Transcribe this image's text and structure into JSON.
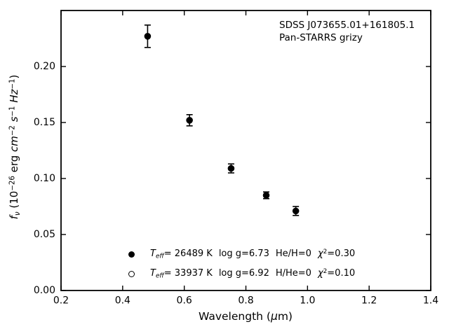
{
  "figure": {
    "annotation": {
      "line1": "SDSS J073655.01+161805.1",
      "line2": "Pan-STARRS grizy"
    },
    "xlabel": {
      "pre": "Wavelength (",
      "mu": "μ",
      "post": "m)"
    },
    "ylabel": {
      "f": "f",
      "nu": "ν",
      "open": " (10",
      "exp": "−26",
      "erg": " erg ",
      "cm": "cm",
      "cm_exp": "−2",
      "sp1": " ",
      "s": "s",
      "s_exp": "−1",
      "sp2": " ",
      "hz": "Hz",
      "hz_exp": "−1",
      "close": ")"
    }
  },
  "legend": {
    "rows": [
      {
        "marker": "filled-circle",
        "T": "T",
        "T_sub": "eff",
        "teff_val": "= 26489 K",
        "logg": "log g=6.73",
        "ratio": "He/H=0",
        "chi": "χ",
        "chi_exp": "2",
        "chi_val": "=0.30"
      },
      {
        "marker": "open-circle",
        "T": "T",
        "T_sub": "eff",
        "teff_val": "= 33937 K",
        "logg": "log g=6.92",
        "ratio": "H/He=0",
        "chi": "χ",
        "chi_exp": "2",
        "chi_val": "=0.10"
      }
    ]
  },
  "chart_data": {
    "type": "scatter",
    "title": "SDSS J073655.01+161805.1",
    "subtitle": "Pan-STARRS grizy",
    "xlabel": "Wavelength (μm)",
    "ylabel": "f_ν (10^−26 erg cm^−2 s^−1 Hz^−1)",
    "xlim": [
      0.2,
      1.4
    ],
    "ylim": [
      0.0,
      0.25
    ],
    "grid": false,
    "legend_position": "lower center",
    "x_ticks": [
      {
        "v": 0.2,
        "label": "0.2"
      },
      {
        "v": 0.4,
        "label": "0.4"
      },
      {
        "v": 0.6,
        "label": "0.6"
      },
      {
        "v": 0.8,
        "label": "0.8"
      },
      {
        "v": 1.0,
        "label": "1.0"
      },
      {
        "v": 1.2,
        "label": "1.2"
      },
      {
        "v": 1.4,
        "label": "1.4"
      }
    ],
    "y_ticks": [
      {
        "v": 0.0,
        "label": "0.00"
      },
      {
        "v": 0.05,
        "label": "0.05"
      },
      {
        "v": 0.1,
        "label": "0.10"
      },
      {
        "v": 0.15,
        "label": "0.15"
      },
      {
        "v": 0.2,
        "label": "0.20"
      }
    ],
    "series": [
      {
        "name": "Teff= 26489 K log g=6.73 He/H=0 chi2=0.30",
        "marker": "filled-circle",
        "color": "#000000",
        "points": [
          {
            "band": "g",
            "x": 0.481,
            "y": 0.227,
            "yerr": 0.01
          },
          {
            "band": "r",
            "x": 0.617,
            "y": 0.152,
            "yerr": 0.005
          },
          {
            "band": "i",
            "x": 0.752,
            "y": 0.109,
            "yerr": 0.004
          },
          {
            "band": "z",
            "x": 0.866,
            "y": 0.085,
            "yerr": 0.003
          },
          {
            "band": "y",
            "x": 0.962,
            "y": 0.071,
            "yerr": 0.004
          }
        ]
      },
      {
        "name": "Teff= 33937 K log g=6.92 H/He=0 chi2=0.10",
        "marker": "open-circle",
        "color": "#000000",
        "points": []
      }
    ]
  }
}
